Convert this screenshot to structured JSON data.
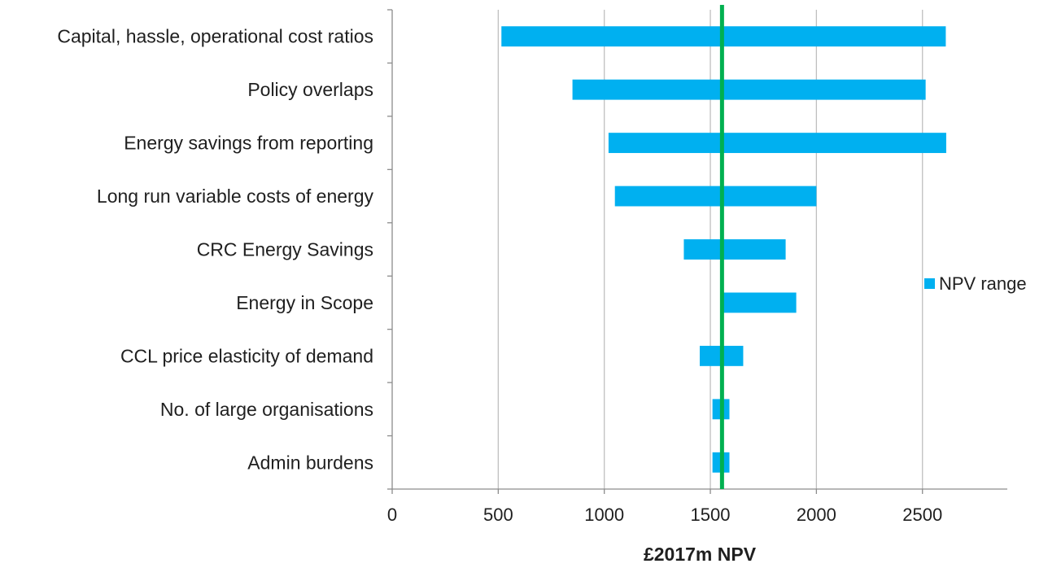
{
  "chart_data": {
    "type": "bar",
    "orientation": "horizontal",
    "title": "",
    "xlabel": "£2017m NPV",
    "ylabel": "",
    "xlim": [
      0,
      2900
    ],
    "xticks": [
      0,
      500,
      1000,
      1500,
      2000,
      2500
    ],
    "xtick_labels": [
      "0",
      "500",
      "1000",
      "1500",
      "2000",
      "2500"
    ],
    "grid": "vertical",
    "legend_position": "right",
    "categories": [
      "Capital, hassle, operational cost ratios",
      "Policy overlaps",
      "Energy savings from reporting",
      "Long run variable costs of energy",
      "CRC Energy Savings",
      "Energy in Scope",
      "CCL price elasticity of demand",
      "No. of large organisations",
      "Admin burdens"
    ],
    "series": [
      {
        "name": "NPV range",
        "color": "#00b0f0",
        "ranges": [
          [
            515,
            2610
          ],
          [
            850,
            2515
          ],
          [
            1020,
            2612
          ],
          [
            1050,
            2000
          ],
          [
            1375,
            1855
          ],
          [
            1555,
            1905
          ],
          [
            1450,
            1655
          ],
          [
            1510,
            1590
          ],
          [
            1510,
            1590
          ]
        ]
      }
    ],
    "reference_line": {
      "value": 1555,
      "color": "#00b050"
    },
    "colors": {
      "bar": "#00b0f0",
      "reference": "#00b050",
      "grid": "#bfbfbf",
      "axis": "#8c8c8c"
    }
  }
}
